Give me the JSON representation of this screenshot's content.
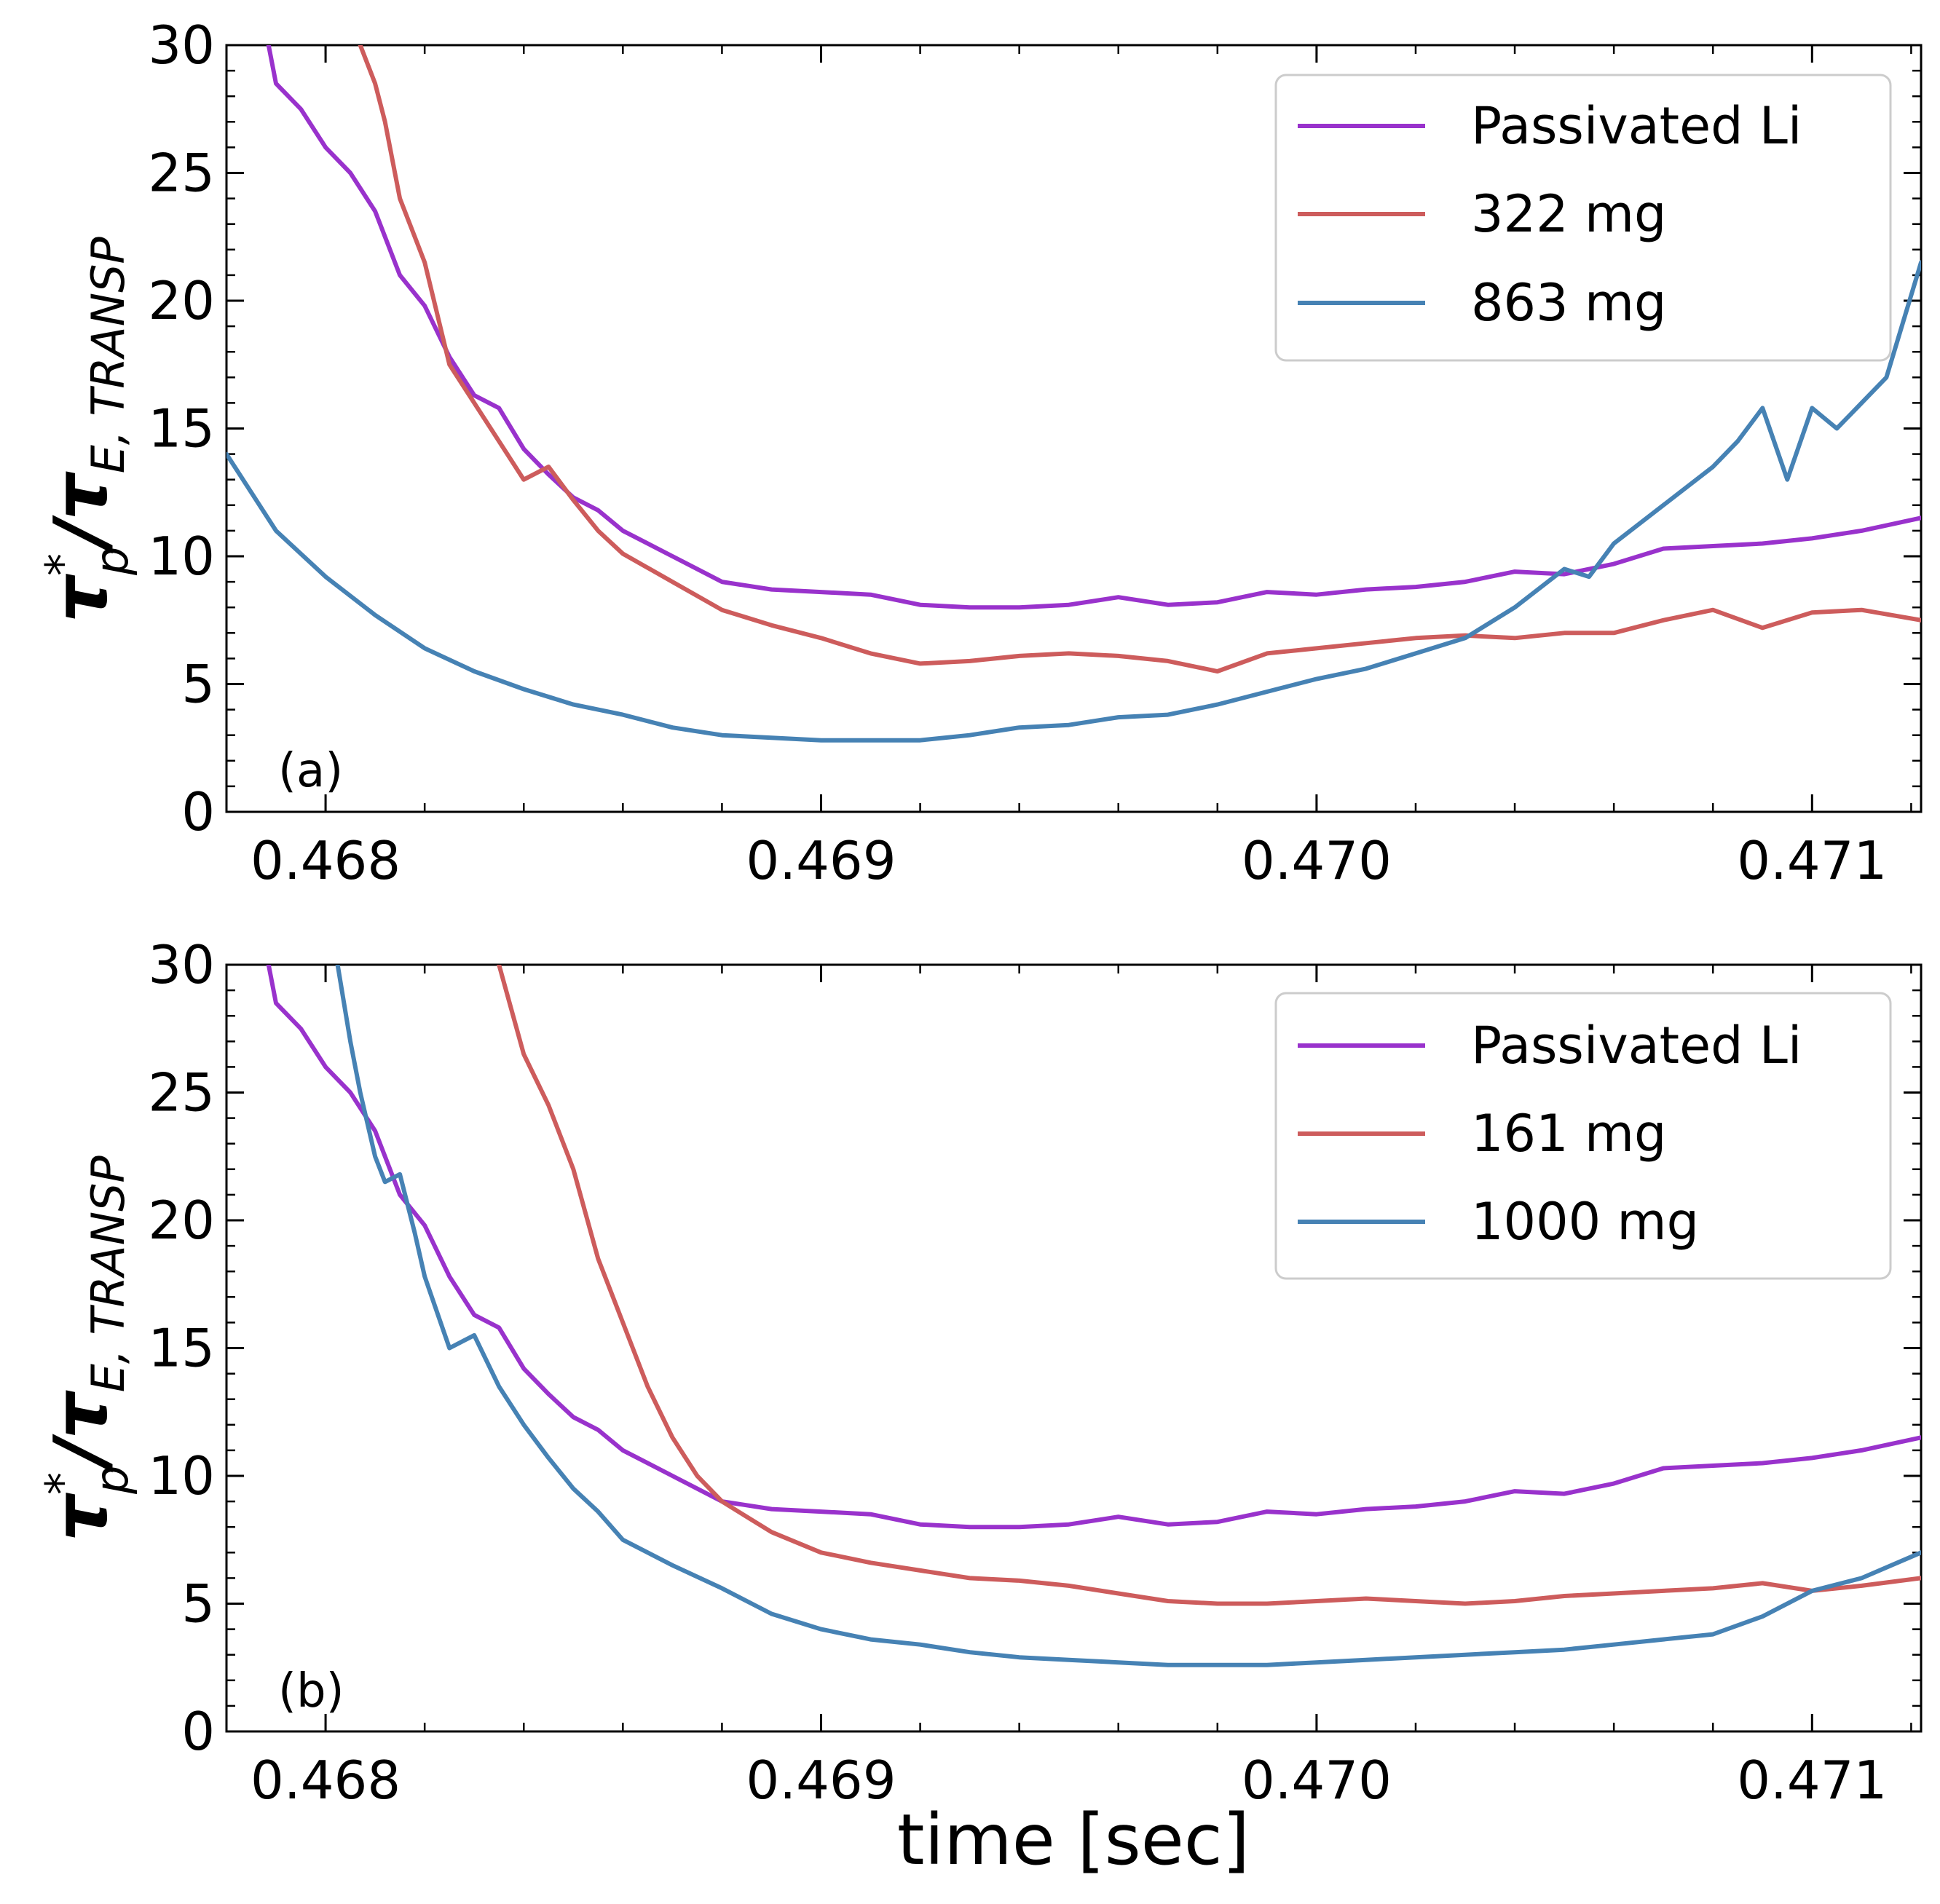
{
  "shared": {
    "ylabel_main": "τ",
    "ylabel_sup": "*",
    "ylabel_sub1": "p",
    "ylabel_slash": "/τ",
    "ylabel_sub2": "E, TRANSP",
    "xlabel": "time [sec]"
  },
  "colors": {
    "passivated": "#9932CC",
    "mid": "#CD5C5C",
    "high": "#4682B4"
  },
  "chart_data": [
    {
      "type": "line",
      "panel_label": "(a)",
      "xlim": [
        0.4678,
        0.47122
      ],
      "ylim": [
        0,
        30
      ],
      "x_ticks": [
        0.468,
        0.469,
        0.47,
        0.471
      ],
      "x_tick_labels": [
        "0.468",
        "0.469",
        "0.470",
        "0.471"
      ],
      "y_ticks": [
        0,
        5,
        10,
        15,
        20,
        25,
        30
      ],
      "y_tick_labels": [
        "0",
        "5",
        "10",
        "15",
        "20",
        "25",
        "30"
      ],
      "legend_position": "top-right",
      "series": [
        {
          "name": "Passivated Li",
          "color_key": "passivated",
          "x": [
            0.46788,
            0.4679,
            0.46795,
            0.468,
            0.46805,
            0.4681,
            0.46815,
            0.4682,
            0.46825,
            0.4683,
            0.46835,
            0.4684,
            0.46845,
            0.4685,
            0.46855,
            0.4686,
            0.4687,
            0.4688,
            0.4689,
            0.469,
            0.4691,
            0.4692,
            0.4693,
            0.4694,
            0.4695,
            0.4696,
            0.4697,
            0.4698,
            0.4699,
            0.47,
            0.4701,
            0.4702,
            0.4703,
            0.4704,
            0.4705,
            0.4706,
            0.4707,
            0.4708,
            0.4709,
            0.471,
            0.4711,
            0.47122
          ],
          "y": [
            30.5,
            28.5,
            27.5,
            26,
            25,
            23.5,
            21,
            19.8,
            17.8,
            16.3,
            15.8,
            14.2,
            13.2,
            12.3,
            11.8,
            11.0,
            10.0,
            9.0,
            8.7,
            8.6,
            8.5,
            8.1,
            8.0,
            8.0,
            8.1,
            8.4,
            8.1,
            8.2,
            8.6,
            8.5,
            8.7,
            8.8,
            9.0,
            9.4,
            9.3,
            9.7,
            10.3,
            10.4,
            10.5,
            10.7,
            11.0,
            11.5
          ]
        },
        {
          "name": "322 mg",
          "color_key": "mid",
          "x": [
            0.46807,
            0.4681,
            0.46812,
            0.46815,
            0.46818,
            0.4682,
            0.46825,
            0.4683,
            0.46835,
            0.4684,
            0.46845,
            0.4685,
            0.46855,
            0.4686,
            0.4687,
            0.4688,
            0.4689,
            0.469,
            0.4691,
            0.4692,
            0.4693,
            0.4694,
            0.4695,
            0.4696,
            0.4697,
            0.4698,
            0.4699,
            0.47,
            0.4701,
            0.4702,
            0.4703,
            0.4704,
            0.4705,
            0.4706,
            0.4707,
            0.4708,
            0.4709,
            0.471,
            0.4711,
            0.47122
          ],
          "y": [
            30,
            28.5,
            27,
            24,
            22.5,
            21.5,
            17.5,
            16.0,
            14.5,
            13.0,
            13.5,
            12.2,
            11.0,
            10.1,
            9.0,
            7.9,
            7.3,
            6.8,
            6.2,
            5.8,
            5.9,
            6.1,
            6.2,
            6.1,
            5.9,
            5.5,
            6.2,
            6.4,
            6.6,
            6.8,
            6.9,
            6.8,
            7.0,
            7.0,
            7.5,
            7.9,
            7.2,
            7.8,
            7.9,
            7.5
          ]
        },
        {
          "name": "863 mg",
          "color_key": "high",
          "x": [
            0.4678,
            0.4679,
            0.468,
            0.4681,
            0.4682,
            0.4683,
            0.4684,
            0.4685,
            0.4686,
            0.4687,
            0.4688,
            0.4689,
            0.469,
            0.4691,
            0.4692,
            0.4693,
            0.4694,
            0.4695,
            0.4696,
            0.4697,
            0.4698,
            0.4699,
            0.47,
            0.4701,
            0.4702,
            0.4703,
            0.4704,
            0.4705,
            0.47055,
            0.4706,
            0.4707,
            0.4708,
            0.47085,
            0.4709,
            0.47095,
            0.471,
            0.47105,
            0.4711,
            0.47115,
            0.47122
          ],
          "y": [
            14,
            11,
            9.2,
            7.7,
            6.4,
            5.5,
            4.8,
            4.2,
            3.8,
            3.3,
            3.0,
            2.9,
            2.8,
            2.8,
            2.8,
            3.0,
            3.3,
            3.4,
            3.7,
            3.8,
            4.2,
            4.7,
            5.2,
            5.6,
            6.2,
            6.8,
            8.0,
            9.5,
            9.2,
            10.5,
            12.0,
            13.5,
            14.5,
            15.8,
            13.0,
            15.8,
            15.0,
            16.0,
            17.0,
            21.5
          ]
        }
      ]
    },
    {
      "type": "line",
      "panel_label": "(b)",
      "xlim": [
        0.4678,
        0.47122
      ],
      "ylim": [
        0,
        30
      ],
      "x_ticks": [
        0.468,
        0.469,
        0.47,
        0.471
      ],
      "x_tick_labels": [
        "0.468",
        "0.469",
        "0.470",
        "0.471"
      ],
      "y_ticks": [
        0,
        5,
        10,
        15,
        20,
        25,
        30
      ],
      "y_tick_labels": [
        "0",
        "5",
        "10",
        "15",
        "20",
        "25",
        "30"
      ],
      "legend_position": "top-right",
      "series": [
        {
          "name": "Passivated Li",
          "color_key": "passivated",
          "x": [
            0.46788,
            0.4679,
            0.46795,
            0.468,
            0.46805,
            0.4681,
            0.46815,
            0.4682,
            0.46825,
            0.4683,
            0.46835,
            0.4684,
            0.46845,
            0.4685,
            0.46855,
            0.4686,
            0.4687,
            0.4688,
            0.4689,
            0.469,
            0.4691,
            0.4692,
            0.4693,
            0.4694,
            0.4695,
            0.4696,
            0.4697,
            0.4698,
            0.4699,
            0.47,
            0.4701,
            0.4702,
            0.4703,
            0.4704,
            0.4705,
            0.4706,
            0.4707,
            0.4708,
            0.4709,
            0.471,
            0.4711,
            0.47122
          ],
          "y": [
            30.5,
            28.5,
            27.5,
            26,
            25,
            23.5,
            21,
            19.8,
            17.8,
            16.3,
            15.8,
            14.2,
            13.2,
            12.3,
            11.8,
            11.0,
            10.0,
            9.0,
            8.7,
            8.6,
            8.5,
            8.1,
            8.0,
            8.0,
            8.1,
            8.4,
            8.1,
            8.2,
            8.6,
            8.5,
            8.7,
            8.8,
            9.0,
            9.4,
            9.3,
            9.7,
            10.3,
            10.4,
            10.5,
            10.7,
            11.0,
            11.5
          ]
        },
        {
          "name": "161 mg",
          "color_key": "mid",
          "x": [
            0.46835,
            0.4684,
            0.46845,
            0.4685,
            0.46855,
            0.4686,
            0.46865,
            0.4687,
            0.46875,
            0.4688,
            0.46885,
            0.4689,
            0.469,
            0.4691,
            0.4692,
            0.4693,
            0.4694,
            0.4695,
            0.4696,
            0.4697,
            0.4698,
            0.4699,
            0.47,
            0.4701,
            0.4702,
            0.4703,
            0.4704,
            0.4705,
            0.4706,
            0.4707,
            0.4708,
            0.4709,
            0.471,
            0.4711,
            0.47122
          ],
          "y": [
            30,
            26.5,
            24.5,
            22.0,
            18.5,
            16.0,
            13.5,
            11.5,
            10.0,
            9.0,
            8.4,
            7.8,
            7.0,
            6.6,
            6.3,
            6.0,
            5.9,
            5.7,
            5.4,
            5.1,
            5.0,
            5.0,
            5.1,
            5.2,
            5.1,
            5.0,
            5.1,
            5.3,
            5.4,
            5.5,
            5.6,
            5.8,
            5.5,
            5.7,
            6.0
          ]
        },
        {
          "name": "1000 mg",
          "color_key": "high",
          "x": [
            0.46802,
            0.46805,
            0.46807,
            0.4681,
            0.46812,
            0.46815,
            0.46818,
            0.4682,
            0.46825,
            0.4683,
            0.46835,
            0.4684,
            0.46845,
            0.4685,
            0.46855,
            0.4686,
            0.4687,
            0.4688,
            0.4689,
            0.469,
            0.4691,
            0.4692,
            0.4693,
            0.4694,
            0.4695,
            0.4696,
            0.4697,
            0.4698,
            0.4699,
            0.47,
            0.4701,
            0.4702,
            0.4703,
            0.4704,
            0.4705,
            0.4706,
            0.4707,
            0.4708,
            0.4709,
            0.471,
            0.4711,
            0.47122
          ],
          "y": [
            30.5,
            27,
            25,
            22.5,
            21.5,
            21.8,
            19.5,
            17.8,
            15.0,
            15.5,
            13.5,
            12.0,
            10.7,
            9.5,
            8.6,
            7.5,
            6.5,
            5.6,
            4.6,
            4.0,
            3.6,
            3.4,
            3.1,
            2.9,
            2.8,
            2.7,
            2.6,
            2.6,
            2.6,
            2.7,
            2.8,
            2.9,
            3.0,
            3.1,
            3.2,
            3.4,
            3.6,
            3.8,
            4.5,
            5.5,
            6.0,
            7.0
          ]
        }
      ]
    }
  ]
}
